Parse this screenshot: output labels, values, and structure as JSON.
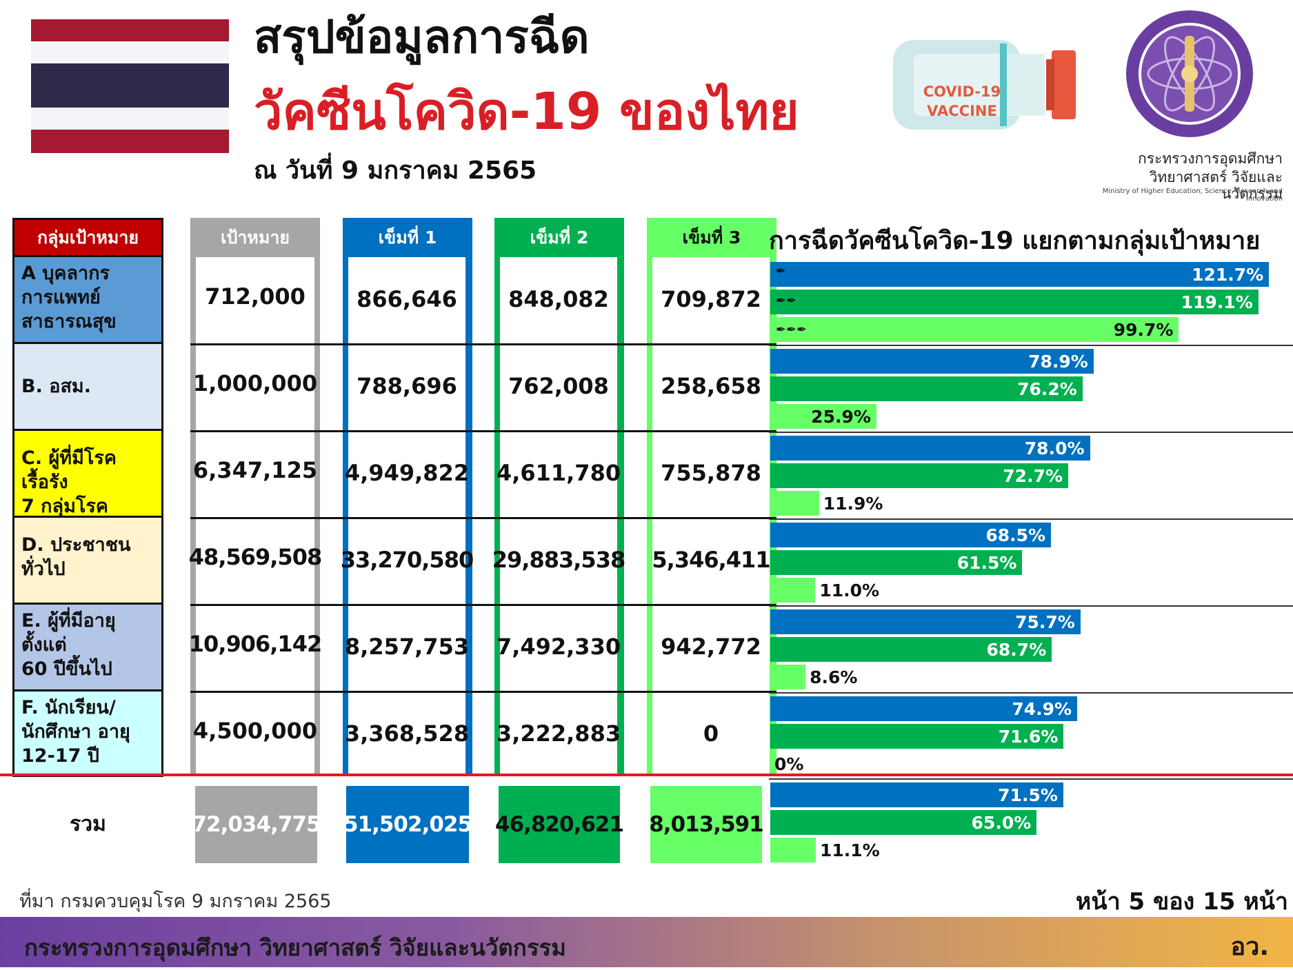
{
  "header": {
    "title_line1": "สรุปข้อมูลการฉีด",
    "title_line2": "วัคซีนโควิด-19 ของไทย",
    "date": "ณ วันที่ 9 มกราคม 2565",
    "vaccine_label_1": "COVID-19",
    "vaccine_label_2": "VACCINE",
    "ministry_th_line1": "กระทรวงการอุดมศึกษา",
    "ministry_th_line2": "วิทยาศาสตร์ วิจัยและนวัตกรรม",
    "ministry_en": "Ministry of Higher Education, Science, Research and Innovation"
  },
  "colors": {
    "flag_red": "#a51931",
    "flag_white": "#f4f5f8",
    "flag_blue": "#2d2a4a",
    "group_header": "#c00000",
    "target_gray": "#a6a6a6",
    "dose1_blue": "#0070c0",
    "dose2_green": "#00b050",
    "dose3_lightgreen": "#66ff66",
    "groupA": "#5b9bd5",
    "groupB": "#dde8f5",
    "groupC": "#ffff00",
    "groupD": "#fff2cc",
    "groupE": "#b4c6e7",
    "groupF": "#ccffff",
    "total_line": "#e81920"
  },
  "table": {
    "headers": {
      "group": "กลุ่มเป้าหมาย",
      "target": "เป้าหมาย",
      "dose1": "เข็มที่ 1",
      "dose2": "เข็มที่ 2",
      "dose3": "เข็มที่ 3"
    },
    "rows": [
      {
        "group": "A บุคลากร\n   การแพทย์\n   สาธารณสุข",
        "target": "712,000",
        "dose1": "866,646",
        "dose2": "848,082",
        "dose3": "709,872"
      },
      {
        "group": "B. อสม.",
        "target": "1,000,000",
        "dose1": "788,696",
        "dose2": "762,008",
        "dose3": "258,658"
      },
      {
        "group": "C. ผู้ที่มีโรคเรื้อรัง\n   7 กลุ่มโรค",
        "target": "6,347,125",
        "dose1": "4,949,822",
        "dose2": "4,611,780",
        "dose3": "755,878"
      },
      {
        "group": "D. ประชาชน\n     ทั่วไป",
        "target": "48,569,508",
        "dose1": "33,270,580",
        "dose2": "29,883,538",
        "dose3": "5,346,411"
      },
      {
        "group": "E. ผู้ที่มีอายุ\n   ตั้งแต่\n   60 ปีขึ้นไป",
        "target": "10,906,142",
        "dose1": "8,257,753",
        "dose2": "7,492,330",
        "dose3": "942,772"
      },
      {
        "group": "F. นักเรียน/\n   นักศึกษา อายุ\n   12-17 ปี",
        "target": "4,500,000",
        "dose1": "3,368,528",
        "dose2": "3,222,883",
        "dose3": "0"
      }
    ],
    "total": {
      "label": "รวม",
      "target": "72,034,775",
      "dose1": "51,502,025",
      "dose2": "46,820,621",
      "dose3": "8,013,591"
    }
  },
  "chart_data": {
    "type": "bar",
    "title": "การฉีดวัคซีนโควิด-19 แยกตามกลุ่มเป้าหมาย",
    "orientation": "horizontal",
    "categories": [
      "A",
      "B.",
      "C.",
      "D.",
      "E.",
      "F.",
      "รวม"
    ],
    "series": [
      {
        "values": [
          121.7,
          78.9,
          78.0,
          68.5,
          75.7,
          74.9,
          71.5
        ],
        "labels": [
          "121.7%",
          "78.9%",
          "78.0%",
          "68.5%",
          "75.7%",
          "74.9%",
          "71.5%"
        ],
        "color": "#0070c0"
      },
      {
        "values": [
          119.1,
          76.2,
          72.7,
          61.5,
          68.7,
          71.6,
          65.0
        ],
        "labels": [
          "119.1%",
          "76.2%",
          "72.7%",
          "61.5%",
          "68.7%",
          "71.6%",
          "65.0%"
        ],
        "color": "#00b050"
      },
      {
        "values": [
          99.7,
          25.9,
          11.9,
          11.0,
          8.6,
          0,
          11.1
        ],
        "labels": [
          "99.7%",
          "25.9%",
          "11.9%",
          "11.0%",
          "8.6%",
          "0%",
          "11.1%"
        ],
        "color": "#66ff66"
      }
    ],
    "xlim": [
      0,
      122
    ]
  },
  "footer": {
    "source": "ที่มา กรมควบคุมโรค 9 มกราคม 2565",
    "page": "หน้า 5 ของ 15 หน้า",
    "ministry": "กระทรวงการอุดมศึกษา วิทยาศาสตร์ วิจัยและนวัตกรรม",
    "abbr": "อว."
  }
}
